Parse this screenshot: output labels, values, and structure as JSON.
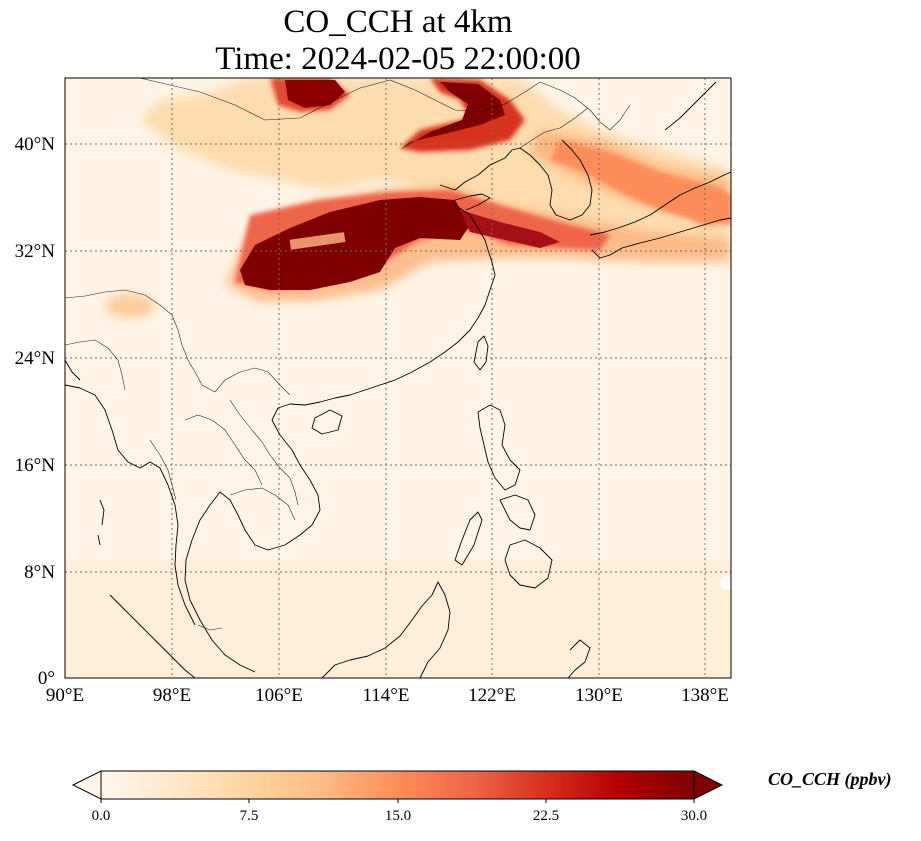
{
  "title": {
    "line1": "CO_CCH at 4km",
    "line2": "Time: 2024-02-05 22:00:00"
  },
  "map": {
    "projection": "PlateCarree",
    "lon_range": [
      90,
      139
    ],
    "lat_range": [
      0,
      44
    ],
    "gridlines": true,
    "gridline_style": "dotted",
    "coastlines": true,
    "borders": true,
    "colormap": "OrRd",
    "x_ticks": [
      {
        "value": 90,
        "label": "90°E"
      },
      {
        "value": 98,
        "label": "98°E"
      },
      {
        "value": 106,
        "label": "106°E"
      },
      {
        "value": 114,
        "label": "114°E"
      },
      {
        "value": 122,
        "label": "122°E"
      },
      {
        "value": 130,
        "label": "130°E"
      },
      {
        "value": 138,
        "label": "138°E"
      }
    ],
    "y_ticks": [
      {
        "value": 0,
        "label": "0°"
      },
      {
        "value": 8,
        "label": "8°N"
      },
      {
        "value": 16,
        "label": "16°N"
      },
      {
        "value": 24,
        "label": "24°N"
      },
      {
        "value": 32,
        "label": "32°N"
      },
      {
        "value": 40,
        "label": "40°N"
      }
    ]
  },
  "colorbar": {
    "label": "CO_CCH (ppbv)",
    "min": 0.0,
    "max": 30.0,
    "extend": "both",
    "ticks": [
      {
        "value": 0.0,
        "label": "0.0"
      },
      {
        "value": 7.5,
        "label": "7.5"
      },
      {
        "value": 15.0,
        "label": "15.0"
      },
      {
        "value": 22.5,
        "label": "22.5"
      },
      {
        "value": 30.0,
        "label": "30.0"
      }
    ],
    "colors": [
      "#fff7ec",
      "#fee8c8",
      "#fdd49e",
      "#fdbb84",
      "#fc8d59",
      "#ef6548",
      "#d7301f",
      "#b30000",
      "#7f0000"
    ]
  }
}
